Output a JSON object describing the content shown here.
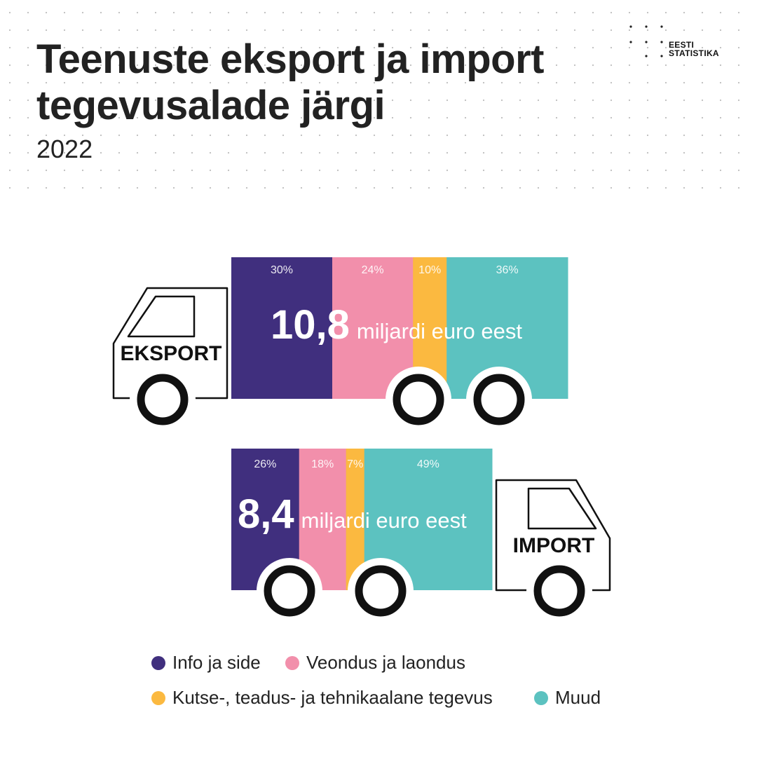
{
  "title_line1": "Teenuste eksport ja import",
  "title_line2": "tegevusalade järgi",
  "subtitle": "2022",
  "logo": {
    "line1": "EESTI",
    "line2": "STATISTIKA"
  },
  "chart_data": {
    "type": "bar",
    "stacked": true,
    "orientation": "horizontal",
    "unit": "%",
    "categories": [
      "EKSPORT",
      "IMPORT"
    ],
    "totals": [
      {
        "value": "10,8",
        "unit": "miljardi euro eest"
      },
      {
        "value": "8,4",
        "unit": "miljardi euro eest"
      }
    ],
    "series": [
      {
        "name": "Info ja side",
        "color": "#402f7e",
        "values": [
          30,
          26
        ]
      },
      {
        "name": "Veondus ja laondus",
        "color": "#f28fab",
        "values": [
          24,
          18
        ]
      },
      {
        "name": "Kutse-, teadus- ja tehnikaalane tegevus",
        "color": "#fbb940",
        "values": [
          10,
          7
        ]
      },
      {
        "name": "Muud",
        "color": "#5cc2c0",
        "values": [
          36,
          49
        ]
      }
    ],
    "legend": "bottom"
  }
}
